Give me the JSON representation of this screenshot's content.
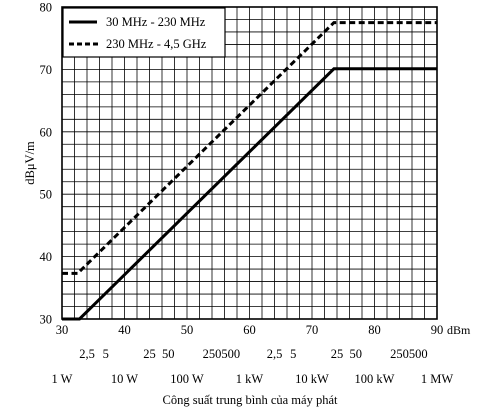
{
  "chart_data": {
    "type": "line",
    "xlabel": "Công suất trung bình của máy phát",
    "x_unit": "dBm",
    "ylabel": "dBμV/m",
    "xlim": [
      30,
      90
    ],
    "ylim": [
      30,
      80
    ],
    "x_ticks": [
      30,
      40,
      50,
      60,
      70,
      80,
      90
    ],
    "y_ticks": [
      30,
      40,
      50,
      60,
      70,
      80
    ],
    "grid": true,
    "legend_position": "top-left",
    "watt_scale_minor": [
      {
        "label": "2,5",
        "dbm": 34
      },
      {
        "label": "5",
        "dbm": 37
      },
      {
        "label": "25",
        "dbm": 44
      },
      {
        "label": "50",
        "dbm": 47
      },
      {
        "label": "250",
        "dbm": 54
      },
      {
        "label": "500",
        "dbm": 57
      },
      {
        "label": "2,5",
        "dbm": 64
      },
      {
        "label": "5",
        "dbm": 67
      },
      {
        "label": "25",
        "dbm": 74
      },
      {
        "label": "50",
        "dbm": 77
      },
      {
        "label": "250",
        "dbm": 84
      },
      {
        "label": "500",
        "dbm": 87
      }
    ],
    "watt_scale_major": [
      {
        "label": "1 W",
        "dbm": 30
      },
      {
        "label": "10 W",
        "dbm": 40
      },
      {
        "label": "100 W",
        "dbm": 50
      },
      {
        "label": "1 kW",
        "dbm": 60
      },
      {
        "label": "10 kW",
        "dbm": 70
      },
      {
        "label": "100 kW",
        "dbm": 80
      },
      {
        "label": "1 MW",
        "dbm": 90
      }
    ],
    "series": [
      {
        "name": "30 MHz - 230 MHz",
        "style": "solid",
        "x": [
          30,
          32.8,
          73.5,
          90
        ],
        "y": [
          30,
          30,
          70.1,
          70.1
        ]
      },
      {
        "name": "230 MHz - 4,5 GHz",
        "style": "dashed",
        "x": [
          30,
          32.5,
          73.5,
          90
        ],
        "y": [
          37.3,
          37.3,
          77.5,
          77.5
        ]
      }
    ]
  }
}
